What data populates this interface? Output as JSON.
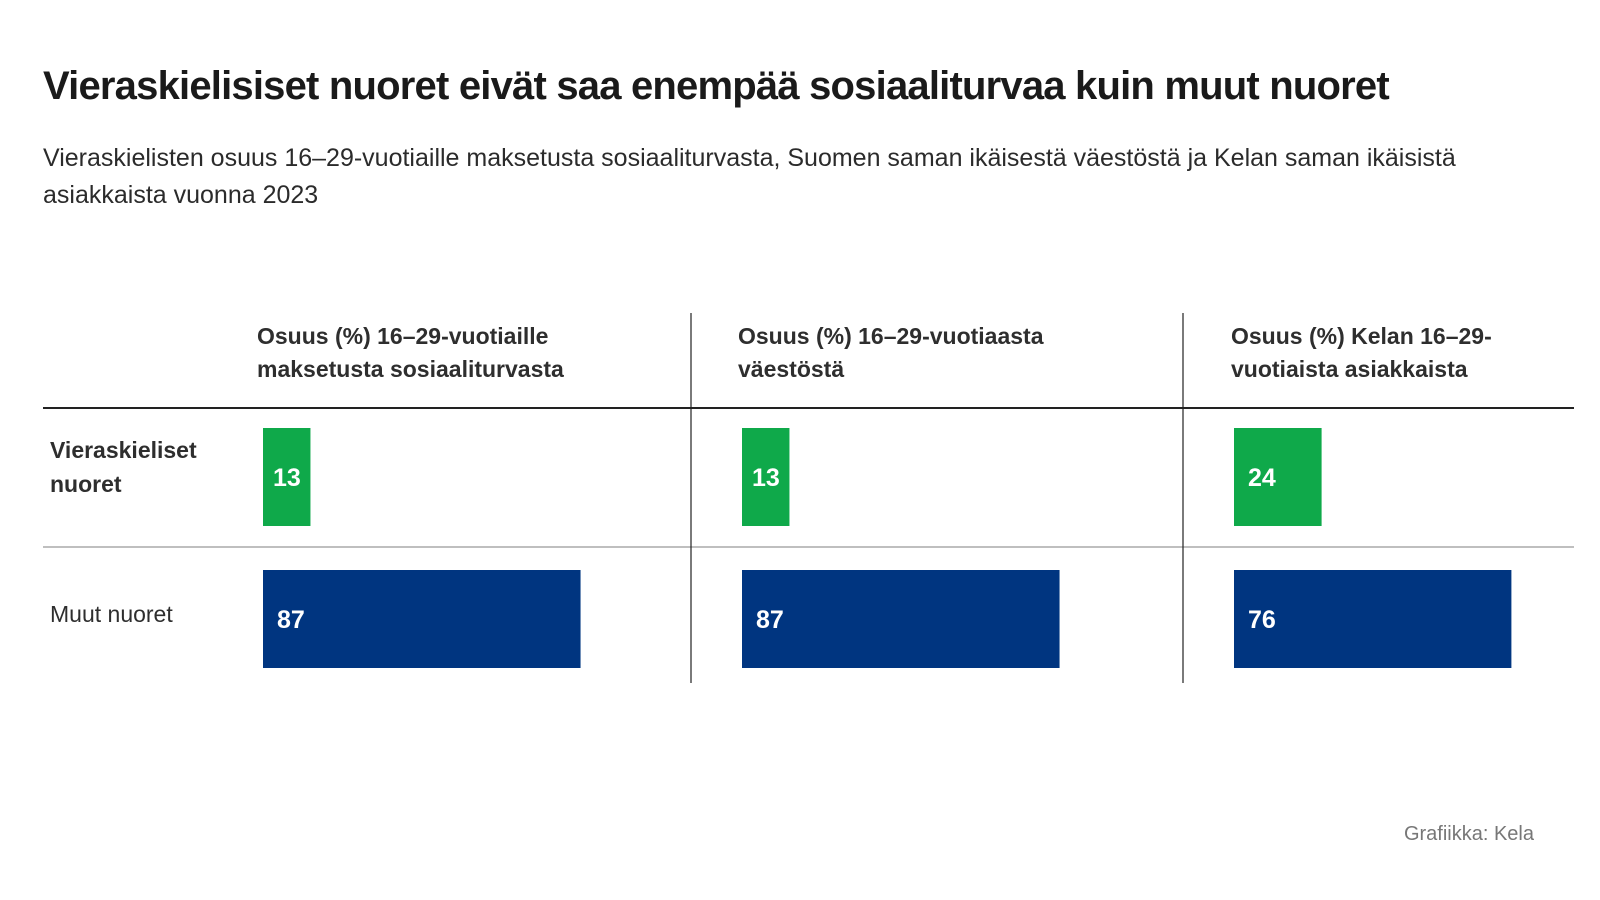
{
  "title": "Vieraskielisiset nuoret eivät saa enempää sosiaaliturvaa kuin muut nuoret",
  "subtitle": "Vieraskielisten osuus 16–29-vuotiaille maksetusta sosiaaliturvasta, Suomen saman ikäisestä väestöstä ja Kelan saman ikäisistä asiakkaista vuonna 2023",
  "source": "Grafiikka: Kela",
  "colors": {
    "group_1": "#0fa94a",
    "group_2": "#003580",
    "divider": "#222222",
    "rule": "#999999"
  },
  "chart_data": {
    "type": "bar",
    "orientation": "horizontal",
    "panels": [
      {
        "header": [
          "Osuus (%) 16–29-vuotiaille",
          "maksetusta sosiaaliturvasta"
        ],
        "values": [
          13,
          87
        ]
      },
      {
        "header": [
          "Osuus (%) 16–29-vuotiaasta",
          "väestöstä"
        ],
        "values": [
          13,
          87
        ]
      },
      {
        "header": [
          "Osuus (%) Kelan 16–29-",
          "vuotiaista asiakkaista"
        ],
        "values": [
          24,
          76
        ]
      }
    ],
    "rows": [
      {
        "label": [
          "Vieraskieliset",
          "nuoret"
        ],
        "bold": true,
        "color": "#0fa94a"
      },
      {
        "label": [
          "Muut nuoret"
        ],
        "bold": false,
        "color": "#003580"
      }
    ],
    "unit": "%",
    "xlim": [
      0,
      100
    ]
  }
}
